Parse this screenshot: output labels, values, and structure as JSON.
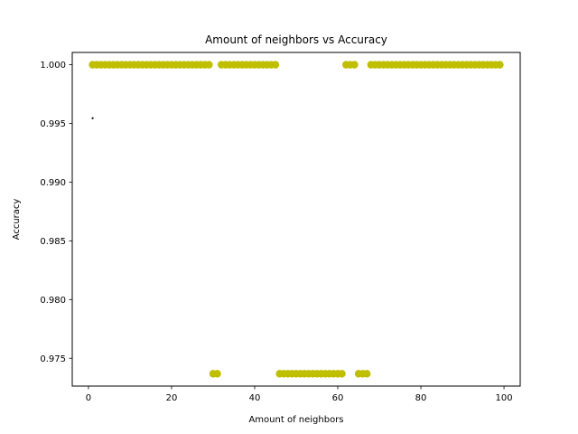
{
  "chart_data": {
    "type": "scatter",
    "title": "Amount of neighbors vs Accuracy",
    "xlabel": "Amount of neighbors",
    "ylabel": "Accuracy",
    "xlim": [
      -3.9,
      103.9
    ],
    "ylim": [
      0.97263,
      1.00105
    ],
    "xticks": [
      0,
      20,
      40,
      60,
      80,
      100
    ],
    "xtick_labels": [
      "0",
      "20",
      "40",
      "60",
      "80",
      "100"
    ],
    "yticks": [
      0.975,
      0.98,
      0.985,
      0.99,
      0.995,
      1.0
    ],
    "ytick_labels": [
      "0.975",
      "0.980",
      "0.985",
      "0.990",
      "0.995",
      "1.000"
    ],
    "grid": false,
    "colors": {
      "points": "#bfbf00",
      "marker": "#000000"
    },
    "series": [
      {
        "x": [
          1,
          2,
          3,
          4,
          5,
          6,
          7,
          8,
          9,
          10,
          11,
          12,
          13,
          14,
          15,
          16,
          17,
          18,
          19,
          20,
          21,
          22,
          23,
          24,
          25,
          26,
          27,
          28,
          29,
          30,
          31,
          32,
          33,
          34,
          35,
          36,
          37,
          38,
          39,
          40,
          41,
          42,
          43,
          44,
          45,
          46,
          47,
          48,
          49,
          50,
          51,
          52,
          53,
          54,
          55,
          56,
          57,
          58,
          59,
          60,
          61,
          62,
          63,
          64,
          65,
          66,
          67,
          68,
          69,
          70,
          71,
          72,
          73,
          74,
          75,
          76,
          77,
          78,
          79,
          80,
          81,
          82,
          83,
          84,
          85,
          86,
          87,
          88,
          89,
          90,
          91,
          92,
          93,
          94,
          95,
          96,
          97,
          98,
          99
        ],
        "y": [
          1.0,
          1.0,
          1.0,
          1.0,
          1.0,
          1.0,
          1.0,
          1.0,
          1.0,
          1.0,
          1.0,
          1.0,
          1.0,
          1.0,
          1.0,
          1.0,
          1.0,
          1.0,
          1.0,
          1.0,
          1.0,
          1.0,
          1.0,
          1.0,
          1.0,
          1.0,
          1.0,
          1.0,
          1.0,
          0.97368,
          0.97368,
          1.0,
          1.0,
          1.0,
          1.0,
          1.0,
          1.0,
          1.0,
          1.0,
          1.0,
          1.0,
          1.0,
          1.0,
          1.0,
          1.0,
          0.97368,
          0.97368,
          0.97368,
          0.97368,
          0.97368,
          0.97368,
          0.97368,
          0.97368,
          0.97368,
          0.97368,
          0.97368,
          0.97368,
          0.97368,
          0.97368,
          0.97368,
          0.97368,
          1.0,
          1.0,
          1.0,
          0.97368,
          0.97368,
          0.97368,
          1.0,
          1.0,
          1.0,
          1.0,
          1.0,
          1.0,
          1.0,
          1.0,
          1.0,
          1.0,
          1.0,
          1.0,
          1.0,
          1.0,
          1.0,
          1.0,
          1.0,
          1.0,
          1.0,
          1.0,
          1.0,
          1.0,
          1.0,
          1.0,
          1.0,
          1.0,
          1.0,
          1.0,
          1.0,
          1.0,
          1.0,
          1.0
        ]
      },
      {
        "x": [
          1
        ],
        "y": [
          0.99545
        ]
      }
    ]
  }
}
